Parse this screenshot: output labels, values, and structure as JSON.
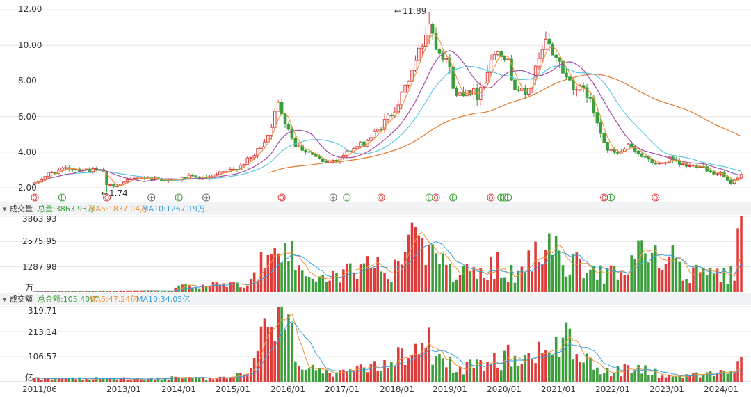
{
  "colors": {
    "up": "#e03b3b",
    "down": "#3a9e3a",
    "ma5": "#f0913a",
    "ma10": "#3aa0e0",
    "ma20": "#a24aa6",
    "ma30": "#5bc8e3",
    "ma60": "#e07a2a",
    "grid": "#e6e6e6",
    "marker_red": "#e03b3b",
    "marker_green": "#3a9e3a",
    "marker_gray": "#666666"
  },
  "price_panel": {
    "y_ticks": [
      "12.00",
      "10.00",
      "8.00",
      "6.00",
      "4.00",
      "2.00"
    ],
    "high_label": "11.89",
    "low_label": "1.74",
    "markers": [
      {
        "t": 0,
        "kind": "Q"
      },
      {
        "t": 8,
        "kind": "L"
      },
      {
        "t": 21,
        "kind": "Q"
      },
      {
        "t": 34,
        "kind": "+"
      },
      {
        "t": 42,
        "kind": "L"
      },
      {
        "t": 50,
        "kind": "+"
      },
      {
        "t": 72,
        "kind": "Q"
      },
      {
        "t": 87,
        "kind": "+"
      },
      {
        "t": 91,
        "kind": "L"
      },
      {
        "t": 101,
        "kind": "Q"
      },
      {
        "t": 115,
        "kind": "L"
      },
      {
        "t": 117,
        "kind": "Q"
      },
      {
        "t": 122,
        "kind": "L"
      },
      {
        "t": 133,
        "kind": "Q"
      },
      {
        "t": 136,
        "kind": "L"
      },
      {
        "t": 137,
        "kind": "L"
      },
      {
        "t": 138,
        "kind": "L"
      },
      {
        "t": 166,
        "kind": "Q"
      },
      {
        "t": 168,
        "kind": "L"
      },
      {
        "t": 181,
        "kind": "Q"
      }
    ]
  },
  "volume_panel": {
    "title": "成交量",
    "total": "总量:3863.93万",
    "ma5": "MA5:1837.04万",
    "ma10": "MA10:1267.19万",
    "y_ticks": [
      "3863.93",
      "2575.95",
      "1287.98",
      "万"
    ]
  },
  "amount_panel": {
    "title": "成交额",
    "total": "总金额:105.40亿",
    "ma5": "MA5:47.24亿",
    "ma10": "MA10:34.05亿",
    "y_ticks": [
      "319.71",
      "213.14",
      "106.57",
      "亿"
    ]
  },
  "x_labels": [
    "2011/06",
    "2013/01",
    "2014/01",
    "2015/01",
    "2016/01",
    "2017/01",
    "2018/01",
    "2019/01",
    "2020/01",
    "2021/01",
    "2022/01",
    "2023/01",
    "2024/01"
  ],
  "chart_data": [
    {
      "type": "candlestick",
      "title": "",
      "x_labels": [
        "2011/06",
        "2013/01",
        "2014/01",
        "2015/01",
        "2016/01",
        "2017/01",
        "2018/01",
        "2019/01",
        "2020/01",
        "2021/01",
        "2022/01",
        "2023/01",
        "2024/01"
      ],
      "ylim": [
        1.9,
        12.4
      ],
      "y_ticks": [
        2,
        4,
        6,
        8,
        10,
        12
      ],
      "high": 11.89,
      "low": 1.74,
      "series": [
        {
          "name": "MA5"
        },
        {
          "name": "MA10"
        }
      ],
      "key_closes": [
        {
          "t": 0,
          "v": 2.2
        },
        {
          "t": 4,
          "v": 2.8
        },
        {
          "t": 10,
          "v": 3.1
        },
        {
          "t": 16,
          "v": 3.0
        },
        {
          "t": 20,
          "v": 2.9
        },
        {
          "t": 21,
          "v": 2.1
        },
        {
          "t": 25,
          "v": 2.2
        },
        {
          "t": 30,
          "v": 2.6
        },
        {
          "t": 36,
          "v": 2.5
        },
        {
          "t": 40,
          "v": 2.4
        },
        {
          "t": 45,
          "v": 2.6
        },
        {
          "t": 50,
          "v": 2.5
        },
        {
          "t": 54,
          "v": 2.8
        },
        {
          "t": 58,
          "v": 3.0
        },
        {
          "t": 64,
          "v": 3.8
        },
        {
          "t": 68,
          "v": 5.0
        },
        {
          "t": 71,
          "v": 6.7
        },
        {
          "t": 73,
          "v": 5.8
        },
        {
          "t": 76,
          "v": 4.4
        },
        {
          "t": 80,
          "v": 4.0
        },
        {
          "t": 84,
          "v": 3.4
        },
        {
          "t": 88,
          "v": 3.6
        },
        {
          "t": 92,
          "v": 4.1
        },
        {
          "t": 96,
          "v": 4.5
        },
        {
          "t": 100,
          "v": 5.2
        },
        {
          "t": 104,
          "v": 6.2
        },
        {
          "t": 107,
          "v": 7.1
        },
        {
          "t": 110,
          "v": 8.6
        },
        {
          "t": 113,
          "v": 10.1
        },
        {
          "t": 115,
          "v": 11.4
        },
        {
          "t": 117,
          "v": 10.1
        },
        {
          "t": 120,
          "v": 9.3
        },
        {
          "t": 123,
          "v": 7.1
        },
        {
          "t": 126,
          "v": 7.6
        },
        {
          "t": 129,
          "v": 7.2
        },
        {
          "t": 132,
          "v": 8.6
        },
        {
          "t": 135,
          "v": 10.0
        },
        {
          "t": 137,
          "v": 9.5
        },
        {
          "t": 140,
          "v": 7.7
        },
        {
          "t": 143,
          "v": 7.2
        },
        {
          "t": 146,
          "v": 8.6
        },
        {
          "t": 149,
          "v": 10.1
        },
        {
          "t": 152,
          "v": 9.4
        },
        {
          "t": 155,
          "v": 8.2
        },
        {
          "t": 158,
          "v": 7.6
        },
        {
          "t": 161,
          "v": 7.3
        },
        {
          "t": 164,
          "v": 5.8
        },
        {
          "t": 167,
          "v": 4.1
        },
        {
          "t": 170,
          "v": 3.9
        },
        {
          "t": 173,
          "v": 4.3
        },
        {
          "t": 176,
          "v": 4.0
        },
        {
          "t": 179,
          "v": 3.5
        },
        {
          "t": 182,
          "v": 3.3
        },
        {
          "t": 185,
          "v": 3.6
        },
        {
          "t": 188,
          "v": 3.3
        },
        {
          "t": 191,
          "v": 3.2
        },
        {
          "t": 194,
          "v": 3.3
        },
        {
          "t": 197,
          "v": 2.9
        },
        {
          "t": 200,
          "v": 2.8
        },
        {
          "t": 203,
          "v": 2.2
        },
        {
          "t": 205,
          "v": 2.5
        },
        {
          "t": 206,
          "v": 2.7
        }
      ],
      "key_volumes": [
        {
          "t": 0,
          "v": 40
        },
        {
          "t": 40,
          "v": 60
        },
        {
          "t": 42,
          "v": 350
        },
        {
          "t": 55,
          "v": 350
        },
        {
          "t": 62,
          "v": 500
        },
        {
          "t": 66,
          "v": 1400
        },
        {
          "t": 72,
          "v": 2300
        },
        {
          "t": 76,
          "v": 1600
        },
        {
          "t": 80,
          "v": 900
        },
        {
          "t": 86,
          "v": 700
        },
        {
          "t": 92,
          "v": 1100
        },
        {
          "t": 98,
          "v": 1400
        },
        {
          "t": 104,
          "v": 1100
        },
        {
          "t": 108,
          "v": 2100
        },
        {
          "t": 112,
          "v": 2500
        },
        {
          "t": 116,
          "v": 1700
        },
        {
          "t": 122,
          "v": 1100
        },
        {
          "t": 128,
          "v": 900
        },
        {
          "t": 134,
          "v": 1400
        },
        {
          "t": 140,
          "v": 900
        },
        {
          "t": 146,
          "v": 1700
        },
        {
          "t": 150,
          "v": 2000
        },
        {
          "t": 154,
          "v": 1800
        },
        {
          "t": 160,
          "v": 1100
        },
        {
          "t": 166,
          "v": 900
        },
        {
          "t": 172,
          "v": 1400
        },
        {
          "t": 176,
          "v": 2200
        },
        {
          "t": 180,
          "v": 1700
        },
        {
          "t": 186,
          "v": 1600
        },
        {
          "t": 190,
          "v": 900
        },
        {
          "t": 196,
          "v": 900
        },
        {
          "t": 200,
          "v": 800
        },
        {
          "t": 204,
          "v": 900
        },
        {
          "t": 206,
          "v": 3860
        }
      ],
      "key_amounts": [
        {
          "t": 0,
          "v": 12
        },
        {
          "t": 40,
          "v": 15
        },
        {
          "t": 55,
          "v": 14
        },
        {
          "t": 62,
          "v": 40
        },
        {
          "t": 68,
          "v": 220
        },
        {
          "t": 71,
          "v": 300
        },
        {
          "t": 74,
          "v": 200
        },
        {
          "t": 78,
          "v": 90
        },
        {
          "t": 86,
          "v": 25
        },
        {
          "t": 94,
          "v": 45
        },
        {
          "t": 102,
          "v": 65
        },
        {
          "t": 108,
          "v": 150
        },
        {
          "t": 112,
          "v": 240
        },
        {
          "t": 118,
          "v": 110
        },
        {
          "t": 124,
          "v": 55
        },
        {
          "t": 132,
          "v": 70
        },
        {
          "t": 138,
          "v": 110
        },
        {
          "t": 144,
          "v": 80
        },
        {
          "t": 150,
          "v": 200
        },
        {
          "t": 154,
          "v": 180
        },
        {
          "t": 160,
          "v": 90
        },
        {
          "t": 168,
          "v": 45
        },
        {
          "t": 176,
          "v": 60
        },
        {
          "t": 182,
          "v": 35
        },
        {
          "t": 190,
          "v": 25
        },
        {
          "t": 198,
          "v": 30
        },
        {
          "t": 204,
          "v": 45
        },
        {
          "t": 206,
          "v": 105
        }
      ]
    }
  ]
}
